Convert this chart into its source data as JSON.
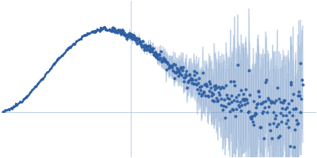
{
  "background_color": "#ffffff",
  "plot_color": "#2e5fa3",
  "error_color": "#b8cfe8",
  "point_color": "#2e5fa3",
  "figsize": [
    4.0,
    2.0
  ],
  "dpi": 100,
  "seed": 12345
}
